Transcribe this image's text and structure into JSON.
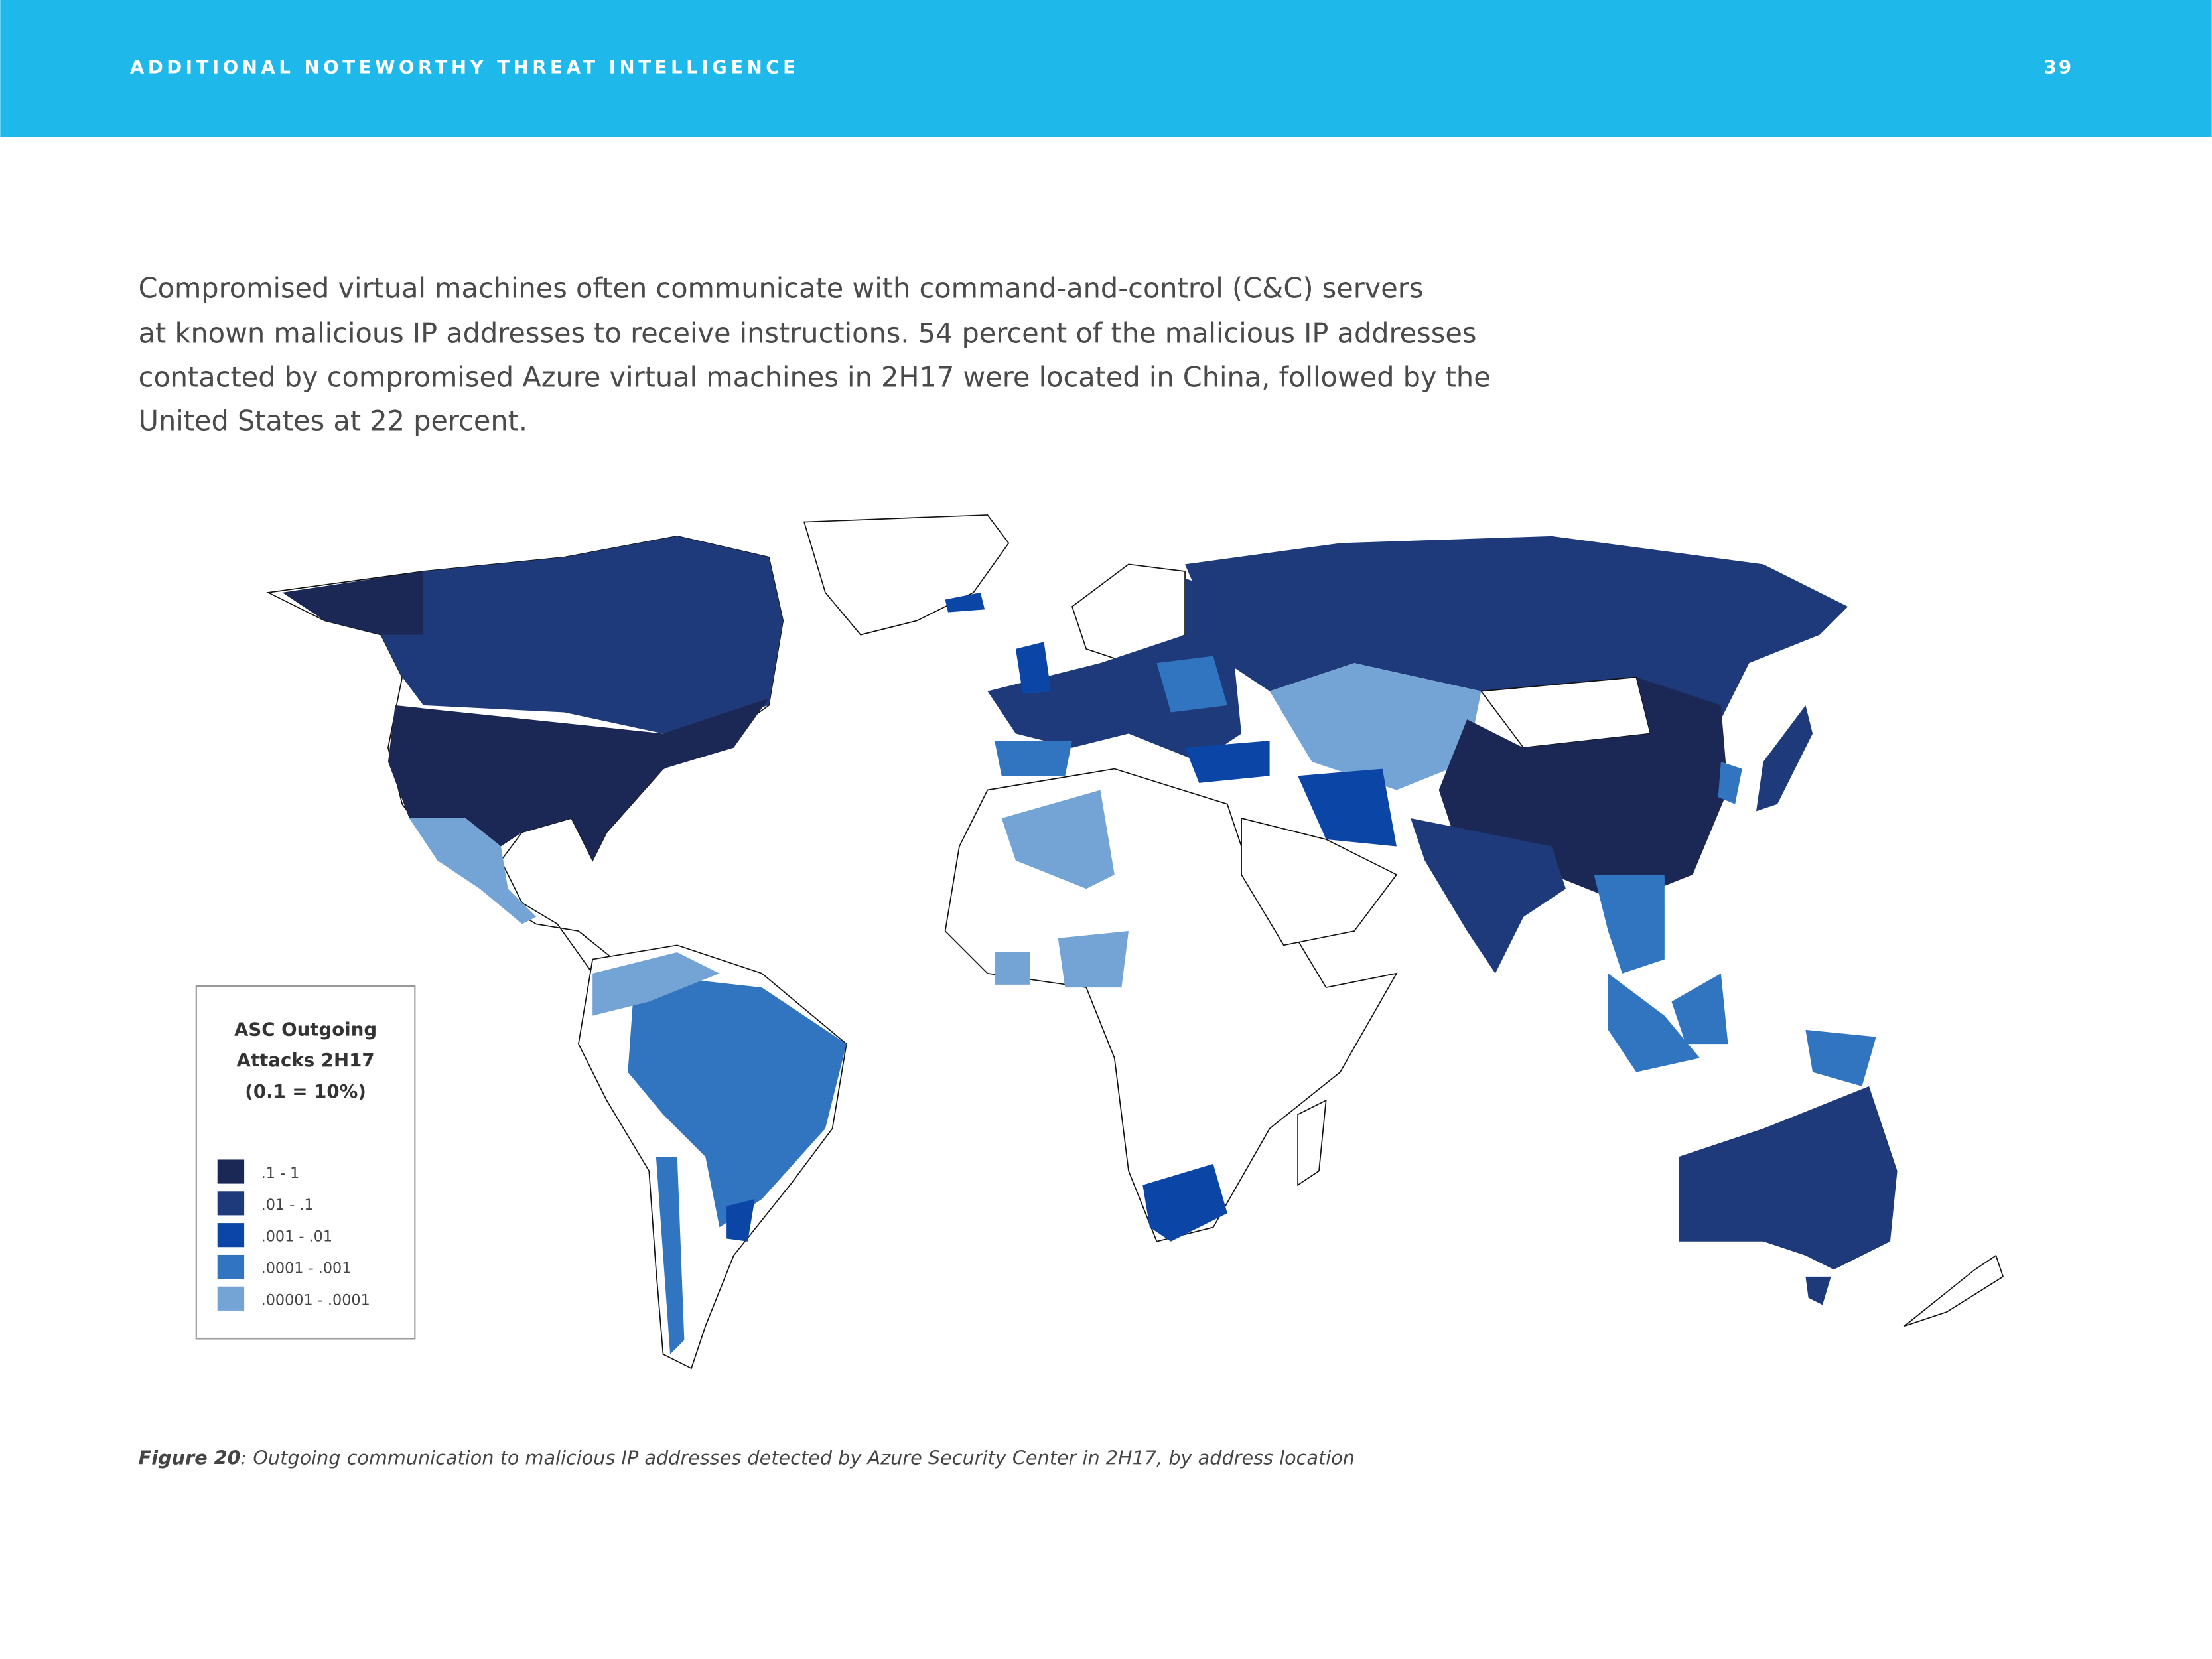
{
  "header": {
    "title": "ADDITIONAL NOTEWORTHY THREAT INTELLIGENCE",
    "page_number": "39"
  },
  "body": {
    "lines": [
      "Compromised virtual machines often communicate with command-and-control (C&C) servers",
      "at known malicious IP addresses to receive instructions. 54 percent of the malicious IP addresses",
      "contacted by compromised Azure virtual machines in 2H17 were located in China, followed by the",
      "United States at 22 percent."
    ]
  },
  "legend": {
    "title_lines": [
      "ASC Outgoing",
      "Attacks 2H17",
      "(0.1 = 10%)"
    ],
    "items": [
      {
        "label": ".1 - 1",
        "color": "#1b2755"
      },
      {
        "label": ".01 - .1",
        "color": "#1e3a7a"
      },
      {
        "label": ".001 - .01",
        "color": "#0b46a6"
      },
      {
        "label": ".0001 - .001",
        "color": "#3175c0"
      },
      {
        "label": ".00001 - .0001",
        "color": "#74a4d5"
      }
    ]
  },
  "caption": {
    "label": "Figure 20",
    "text": ": Outgoing communication to malicious IP addresses detected by Azure Security Center in 2H17, by address location"
  }
}
